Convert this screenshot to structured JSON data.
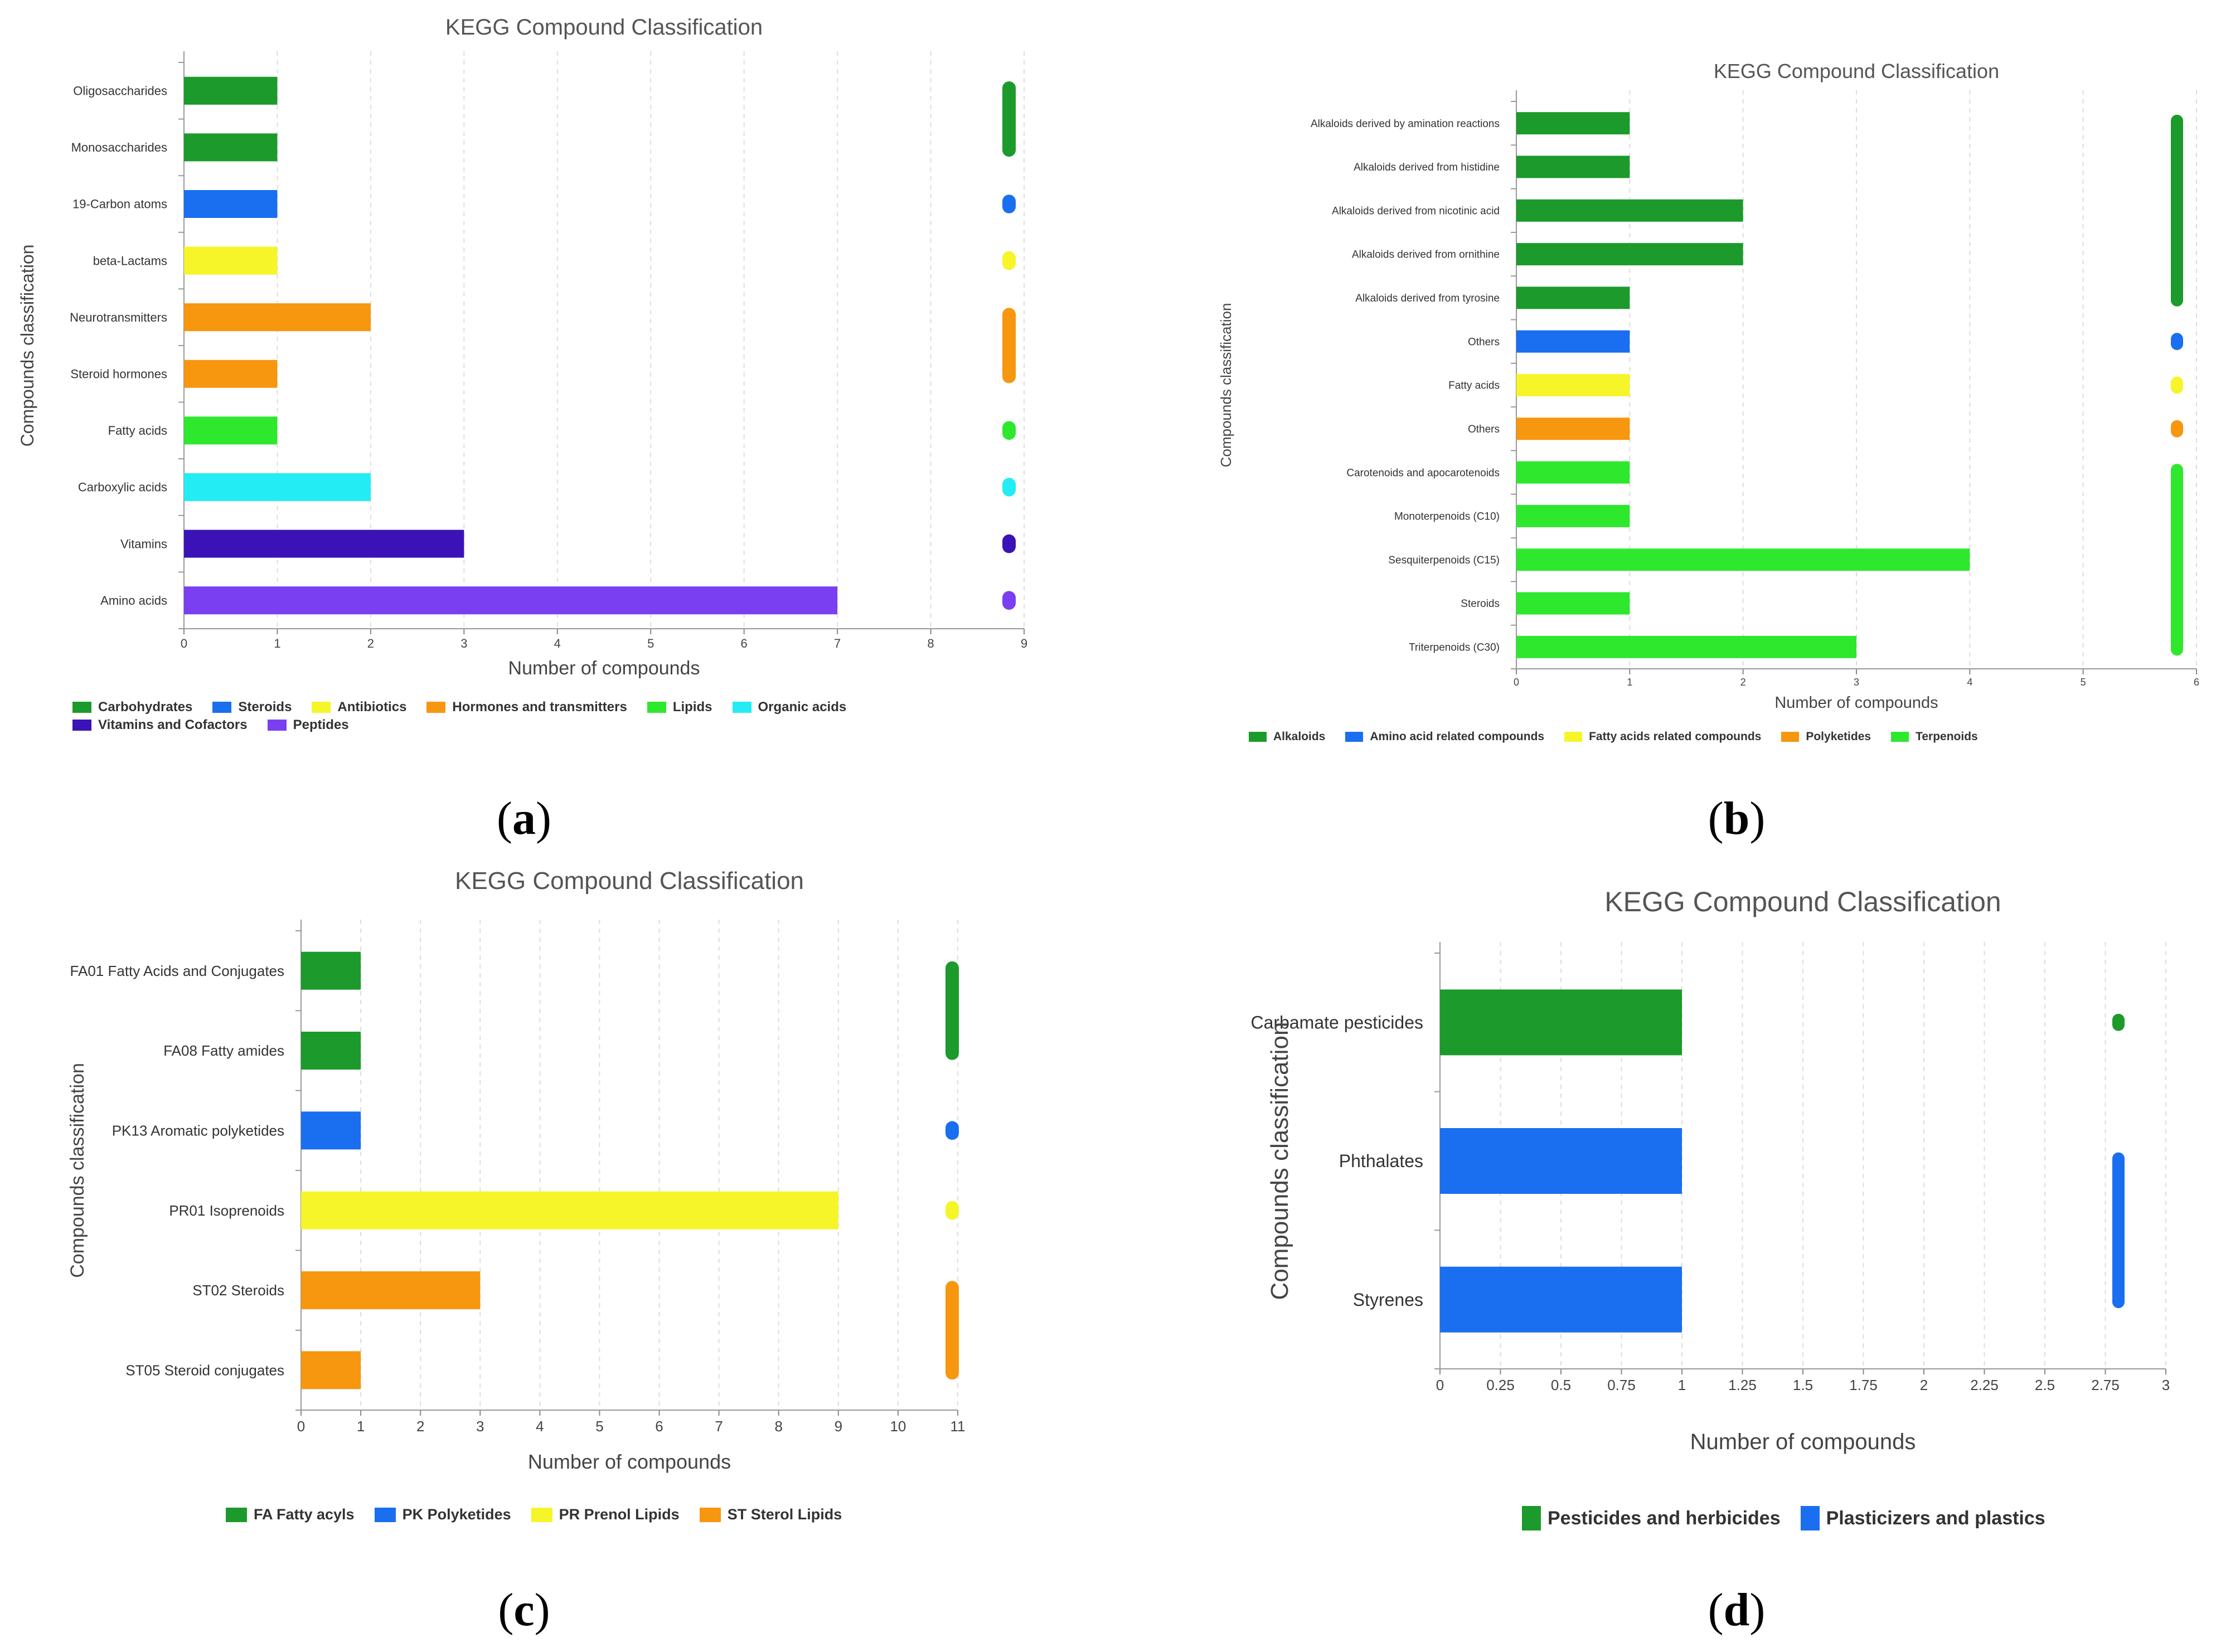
{
  "panel_labels": [
    "a",
    "b",
    "c",
    "d"
  ],
  "chart_data": [
    {
      "id": "a",
      "type": "bar",
      "orientation": "horizontal",
      "title": "KEGG Compound Classification",
      "xlabel": "Number of compounds",
      "ylabel": "Compounds classification",
      "xlim": [
        0,
        9
      ],
      "xticks": [
        0,
        1,
        2,
        3,
        4,
        5,
        6,
        7,
        8,
        9
      ],
      "grid": "vertical dashed",
      "categories": [
        "Oligosaccharides",
        "Monosaccharides",
        "19-Carbon atoms",
        "beta-Lactams",
        "Neurotransmitters",
        "Steroid hormones",
        "Fatty acids",
        "Carboxylic acids",
        "Vitamins",
        "Amino acids"
      ],
      "values": [
        1,
        1,
        1,
        1,
        2,
        1,
        1,
        2,
        3,
        7
      ],
      "group_index": [
        0,
        0,
        1,
        2,
        3,
        3,
        4,
        5,
        6,
        7
      ],
      "groups": [
        {
          "name": "Carbohydrates",
          "color": "#1c9a2b"
        },
        {
          "name": "Steroids",
          "color": "#1a6ef0"
        },
        {
          "name": "Antibiotics",
          "color": "#f5f52a"
        },
        {
          "name": "Hormones and transmitters",
          "color": "#f7960f"
        },
        {
          "name": "Lipids",
          "color": "#2ee82e"
        },
        {
          "name": "Organic acids",
          "color": "#24ecf4"
        },
        {
          "name": "Vitamins and Cofactors",
          "color": "#3a12b8"
        },
        {
          "name": "Peptides",
          "color": "#7a3ff0"
        }
      ],
      "legend": "bottom"
    },
    {
      "id": "b",
      "type": "bar",
      "orientation": "horizontal",
      "title": "KEGG Compound Classification",
      "xlabel": "Number of compounds",
      "ylabel": "Compounds classification",
      "xlim": [
        0,
        6
      ],
      "xticks": [
        0,
        1,
        2,
        3,
        4,
        5,
        6
      ],
      "grid": "vertical dashed",
      "categories": [
        "Alkaloids derived by amination reactions",
        "Alkaloids derived from histidine",
        "Alkaloids derived from nicotinic acid",
        "Alkaloids derived from ornithine",
        "Alkaloids derived from tyrosine",
        "Others",
        "Fatty acids",
        "Others",
        "Carotenoids and apocarotenoids",
        "Monoterpenoids (C10)",
        "Sesquiterpenoids (C15)",
        "Steroids",
        "Triterpenoids (C30)"
      ],
      "values": [
        1,
        1,
        2,
        2,
        1,
        1,
        1,
        1,
        1,
        1,
        4,
        1,
        3
      ],
      "group_index": [
        0,
        0,
        0,
        0,
        0,
        1,
        2,
        3,
        4,
        4,
        4,
        4,
        4
      ],
      "groups": [
        {
          "name": "Alkaloids",
          "color": "#1c9a2b"
        },
        {
          "name": "Amino acid related compounds",
          "color": "#1a6ef0"
        },
        {
          "name": "Fatty acids related compounds",
          "color": "#f5f52a"
        },
        {
          "name": "Polyketides",
          "color": "#f7960f"
        },
        {
          "name": "Terpenoids",
          "color": "#2ee82e"
        }
      ],
      "legend": "bottom"
    },
    {
      "id": "c",
      "type": "bar",
      "orientation": "horizontal",
      "title": "KEGG Compound Classification",
      "xlabel": "Number of compounds",
      "ylabel": "Compounds classification",
      "xlim": [
        0,
        11
      ],
      "xticks": [
        0,
        1,
        2,
        3,
        4,
        5,
        6,
        7,
        8,
        9,
        10,
        11
      ],
      "grid": "vertical dashed",
      "categories": [
        "FA01 Fatty Acids and Conjugates",
        "FA08 Fatty amides",
        "PK13 Aromatic polyketides",
        "PR01 Isoprenoids",
        "ST02 Steroids",
        "ST05 Steroid conjugates"
      ],
      "values": [
        1,
        1,
        1,
        9,
        3,
        1
      ],
      "group_index": [
        0,
        0,
        1,
        2,
        3,
        3
      ],
      "groups": [
        {
          "name": "FA Fatty acyls",
          "color": "#1c9a2b"
        },
        {
          "name": "PK Polyketides",
          "color": "#1a6ef0"
        },
        {
          "name": "PR Prenol Lipids",
          "color": "#f5f52a"
        },
        {
          "name": "ST Sterol Lipids",
          "color": "#f7960f"
        }
      ],
      "legend": "bottom"
    },
    {
      "id": "d",
      "type": "bar",
      "orientation": "horizontal",
      "title": "KEGG Compound Classification",
      "xlabel": "Number of compounds",
      "ylabel": "Compounds classification",
      "xlim": [
        0,
        3
      ],
      "xticks": [
        0,
        0.25,
        0.5,
        0.75,
        1,
        1.25,
        1.5,
        1.75,
        2,
        2.25,
        2.5,
        2.75,
        3
      ],
      "grid": "vertical dashed",
      "categories": [
        "Carbamate pesticides",
        "Phthalates",
        "Styrenes"
      ],
      "values": [
        1,
        1,
        1
      ],
      "group_index": [
        0,
        1,
        1
      ],
      "groups": [
        {
          "name": "Pesticides and herbicides",
          "color": "#1c9a2b"
        },
        {
          "name": "Plasticizers and plastics",
          "color": "#1a6ef0"
        }
      ],
      "legend": "bottom"
    }
  ]
}
